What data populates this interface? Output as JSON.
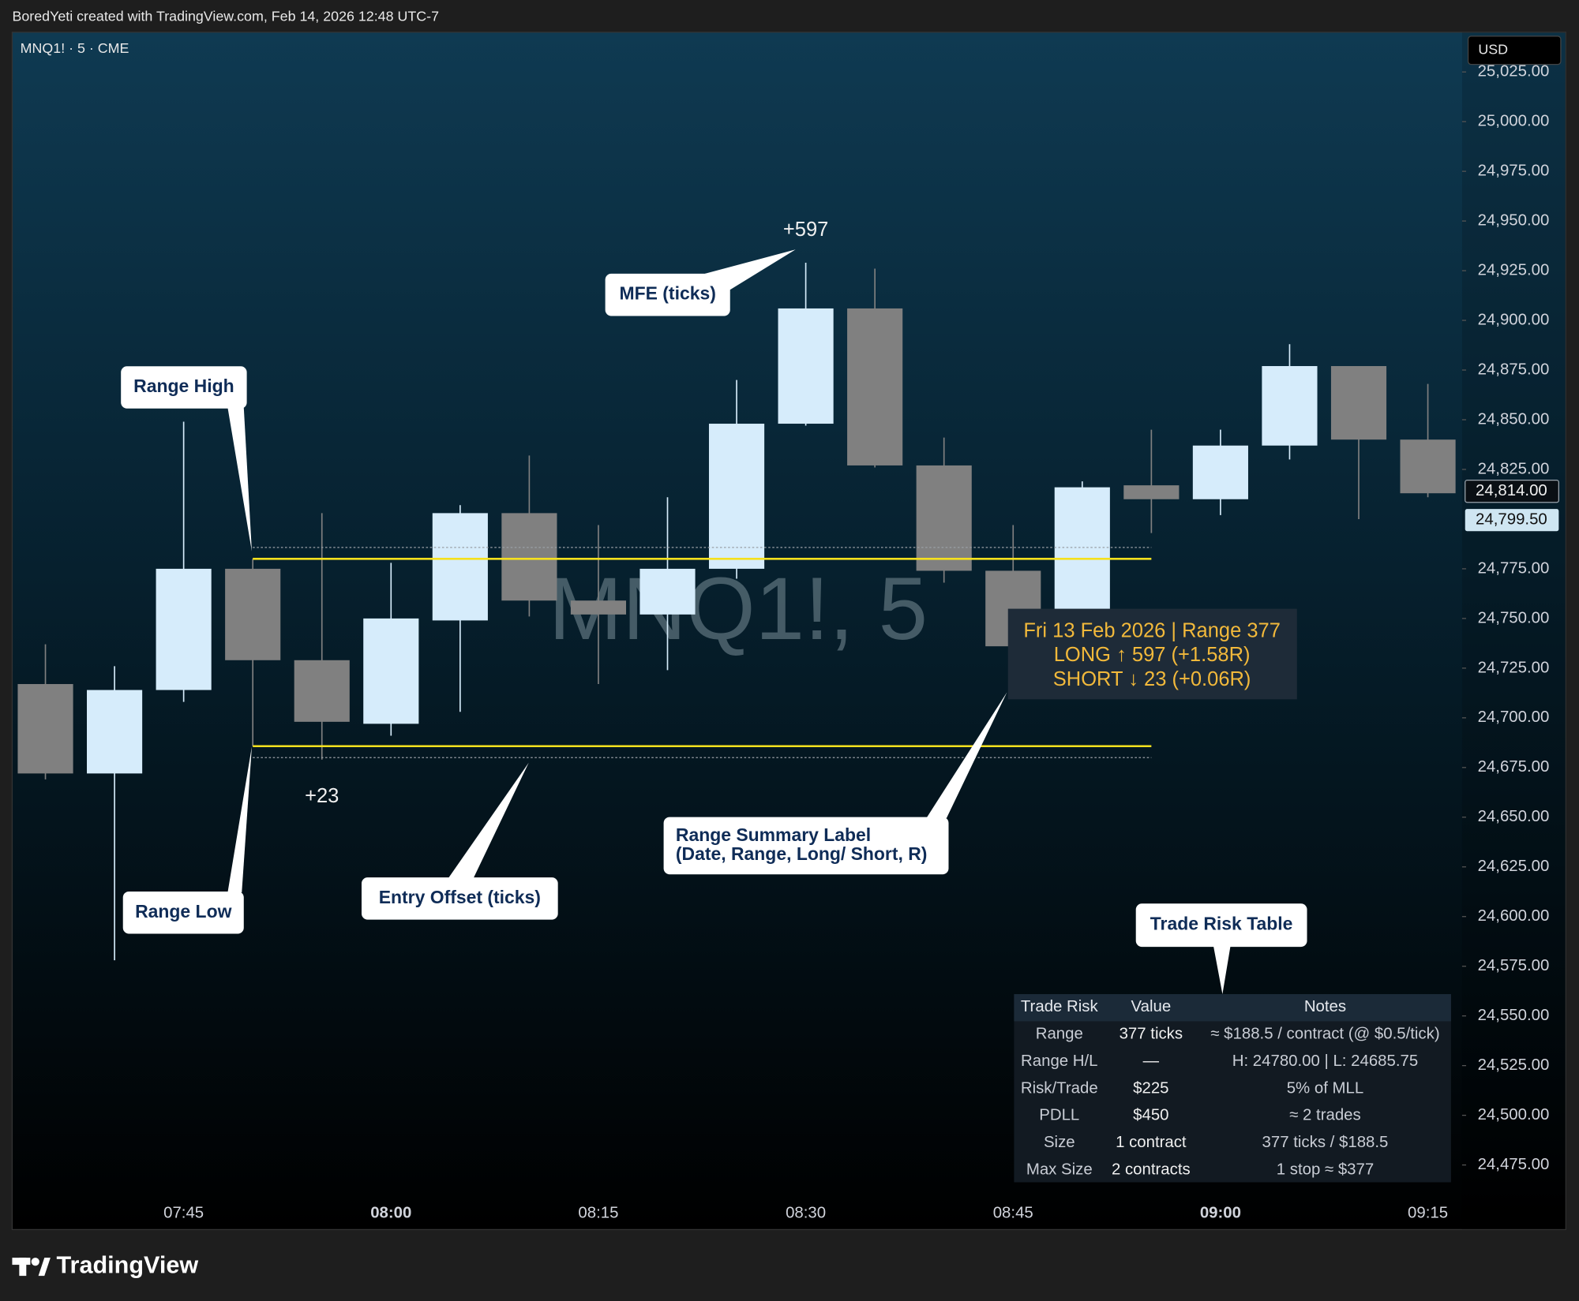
{
  "header": {
    "attribution": "BoredYeti created with TradingView.com, Feb 14, 2026 12:48 UTC-7",
    "brand": "TradingView"
  },
  "chart_data": {
    "type": "candlestick",
    "symbol": "MNQ1! · 5 · CME",
    "currency": "USD",
    "watermark": "MNQ1!, 5",
    "categories": [
      null,
      null,
      "07:45",
      null,
      null,
      "08:00",
      null,
      null,
      "08:15",
      null,
      null,
      "08:30",
      null,
      null,
      "08:45",
      null,
      null,
      "09:00",
      null,
      null,
      "09:15"
    ],
    "open": [
      24717,
      24672,
      24714,
      24775,
      24729,
      24697,
      24749,
      24803,
      24759,
      24752,
      24775,
      24848,
      24906,
      24827,
      24774,
      24736,
      24817,
      24810,
      24837,
      24877,
      24840
    ],
    "high": [
      24737,
      24726,
      24849,
      24780,
      24803,
      24778,
      24807,
      24832,
      24797,
      24811,
      24870,
      24929,
      24926,
      24841,
      24797,
      24819,
      24845,
      24845,
      24888,
      24877,
      24868
    ],
    "low": [
      24669,
      24578,
      24708,
      24685.75,
      24679,
      24691,
      24703,
      24751,
      24717,
      24724,
      24770,
      24847,
      24826,
      24768,
      24736,
      24731,
      24793,
      24802,
      24830,
      24800,
      24811
    ],
    "close": [
      24672,
      24714,
      24775,
      24729,
      24698,
      24750,
      24803,
      24759,
      24752,
      24775,
      24848,
      24906,
      24827,
      24774,
      24736,
      24816,
      24810,
      24837,
      24877,
      24840,
      24813
    ],
    "up_color": "#d6ecfb",
    "down_color": "#808080",
    "ylim": [
      24442.5,
      25045
    ],
    "yticks": [
      {
        "value": 24475,
        "label": "24,475.00"
      },
      {
        "value": 24500,
        "label": "24,500.00"
      },
      {
        "value": 24525,
        "label": "24,525.00"
      },
      {
        "value": 24550,
        "label": "24,550.00"
      },
      {
        "value": 24575,
        "label": "24,575.00"
      },
      {
        "value": 24600,
        "label": "24,600.00"
      },
      {
        "value": 24625,
        "label": "24,625.00"
      },
      {
        "value": 24650,
        "label": "24,650.00"
      },
      {
        "value": 24675,
        "label": "24,675.00"
      },
      {
        "value": 24700,
        "label": "24,700.00"
      },
      {
        "value": 24725,
        "label": "24,725.00"
      },
      {
        "value": 24750,
        "label": "24,750.00"
      },
      {
        "value": 24775,
        "label": "24,775.00"
      },
      {
        "value": 24825,
        "label": "24,825.00"
      },
      {
        "value": 24850,
        "label": "24,850.00"
      },
      {
        "value": 24875,
        "label": "24,875.00"
      },
      {
        "value": 24900,
        "label": "24,900.00"
      },
      {
        "value": 24925,
        "label": "24,925.00"
      },
      {
        "value": 24950,
        "label": "24,950.00"
      },
      {
        "value": 24975,
        "label": "24,975.00"
      },
      {
        "value": 25000,
        "label": "25,000.00"
      },
      {
        "value": 25025,
        "label": "25,025.00"
      }
    ],
    "price_labels": [
      {
        "value": 24814,
        "label": "24,814.00"
      },
      {
        "value": 24799.5,
        "label": "24,799.50"
      }
    ],
    "range_high": 24780,
    "range_low": 24685.75,
    "entry_high": 24785.75,
    "entry_low": 24680,
    "line_color": "#f5e11e",
    "annotations": [
      "+597",
      "+23"
    ],
    "summary_label": [
      "Fri 13 Feb 2026 | Range 377",
      "LONG ↑ 597 (+1.58R)",
      "SHORT ↓ 23 (+0.06R)"
    ],
    "callouts": [
      {
        "lines": [
          "MFE (ticks)"
        ]
      },
      {
        "lines": [
          "Range High"
        ]
      },
      {
        "lines": [
          "Range Low"
        ]
      },
      {
        "lines": [
          "Entry Offset (ticks)"
        ]
      },
      {
        "lines": [
          "Range Summary Label",
          "(Date, Range, Long/ Short, R)"
        ]
      },
      {
        "lines": [
          "Trade Risk Table"
        ]
      }
    ],
    "trade_risk_table": {
      "columns": [
        "Trade Risk",
        "Value",
        "Notes"
      ],
      "rows": [
        [
          "Range",
          "377 ticks",
          "≈ $188.5 / contract (@ $0.5/tick)"
        ],
        [
          "Range H/L",
          "—",
          "H: 24780.00 | L: 24685.75"
        ],
        [
          "Risk/Trade",
          "$225",
          "5% of MLL"
        ],
        [
          "PDLL",
          "$450",
          "≈ 2 trades"
        ],
        [
          "Size",
          "1 contract",
          "377 ticks / $188.5"
        ],
        [
          "Max Size",
          "2 contracts",
          "1 stop ≈ $377"
        ]
      ]
    }
  }
}
